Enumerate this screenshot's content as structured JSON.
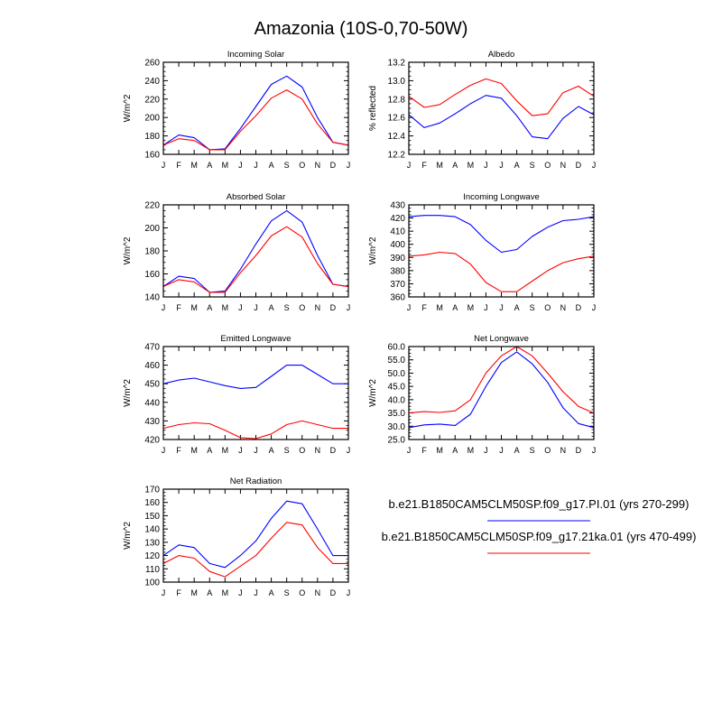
{
  "title": "Amazonia (10S-0,70-50W)",
  "months": [
    "J",
    "F",
    "M",
    "A",
    "M",
    "J",
    "J",
    "A",
    "S",
    "O",
    "N",
    "D",
    "J"
  ],
  "legend": [
    {
      "label": "b.e21.B1850CAM5CLM50SP.f09_g17.PI.01 (yrs 270-299)",
      "color": "#0000ff"
    },
    {
      "label": "b.e21.B1850CAM5CLM50SP.f09_g17.21ka.01 (yrs 470-499)",
      "color": "#ff0000"
    }
  ],
  "chart_data": [
    {
      "type": "line",
      "title": "Incoming Solar",
      "ylabel": "W/m^2",
      "ylim": [
        160,
        260
      ],
      "yticks": [
        160,
        180,
        200,
        220,
        240,
        260
      ],
      "ytick_labels": [
        "160",
        "180",
        "200",
        "220",
        "240",
        "260"
      ],
      "series": [
        {
          "name": "PI",
          "color": "#0000ff",
          "values": [
            170,
            181,
            178,
            165,
            166,
            188,
            212,
            236,
            245,
            233,
            200,
            173,
            170
          ]
        },
        {
          "name": "21ka",
          "color": "#ff0000",
          "values": [
            170,
            177,
            175,
            165,
            165,
            185,
            202,
            221,
            230,
            220,
            193,
            173,
            170
          ]
        }
      ]
    },
    {
      "type": "line",
      "title": "Albedo",
      "ylabel": "% reflected",
      "ylim": [
        12.2,
        13.2
      ],
      "yticks": [
        12.2,
        12.4,
        12.6,
        12.8,
        13.0,
        13.2
      ],
      "ytick_labels": [
        "12.2",
        "12.4",
        "12.6",
        "12.8",
        "13.0",
        "13.2"
      ],
      "series": [
        {
          "name": "PI",
          "color": "#0000ff",
          "values": [
            12.63,
            12.49,
            12.54,
            12.64,
            12.75,
            12.84,
            12.81,
            12.62,
            12.39,
            12.37,
            12.59,
            12.72,
            12.63
          ]
        },
        {
          "name": "21ka",
          "color": "#ff0000",
          "values": [
            12.83,
            12.71,
            12.74,
            12.85,
            12.95,
            13.02,
            12.97,
            12.78,
            12.62,
            12.64,
            12.87,
            12.94,
            12.83
          ]
        }
      ]
    },
    {
      "type": "line",
      "title": "Absorbed Solar",
      "ylabel": "W/m^2",
      "ylim": [
        140,
        220
      ],
      "yticks": [
        140,
        160,
        180,
        200,
        220
      ],
      "ytick_labels": [
        "140",
        "160",
        "180",
        "200",
        "220"
      ],
      "series": [
        {
          "name": "PI",
          "color": "#0000ff",
          "values": [
            149,
            158,
            156,
            144,
            145,
            164,
            186,
            206,
            215,
            205,
            176,
            151,
            149
          ]
        },
        {
          "name": "21ka",
          "color": "#ff0000",
          "values": [
            149,
            155,
            153,
            144,
            144,
            161,
            176,
            193,
            201,
            192,
            169,
            151,
            149
          ]
        }
      ]
    },
    {
      "type": "line",
      "title": "Incoming Longwave",
      "ylabel": "W/m^2",
      "ylim": [
        360,
        430
      ],
      "yticks": [
        360,
        370,
        380,
        390,
        400,
        410,
        420,
        430
      ],
      "ytick_labels": [
        "360",
        "370",
        "380",
        "390",
        "400",
        "410",
        "420",
        "430"
      ],
      "series": [
        {
          "name": "PI",
          "color": "#0000ff",
          "values": [
            421,
            422,
            422,
            421,
            415,
            403,
            394,
            396,
            406,
            413,
            418,
            419,
            421
          ]
        },
        {
          "name": "21ka",
          "color": "#ff0000",
          "values": [
            391,
            392,
            394,
            393,
            385,
            371,
            364,
            364,
            372,
            380,
            386,
            389,
            391
          ]
        }
      ]
    },
    {
      "type": "line",
      "title": "Emitted Longwave",
      "ylabel": "W/m^2",
      "ylim": [
        420,
        470
      ],
      "yticks": [
        420,
        430,
        440,
        450,
        460,
        470
      ],
      "ytick_labels": [
        "420",
        "430",
        "440",
        "450",
        "460",
        "470"
      ],
      "series": [
        {
          "name": "PI",
          "color": "#0000ff",
          "values": [
            450,
            452,
            453,
            451,
            449,
            447.5,
            448,
            454,
            460,
            460,
            455,
            450,
            450
          ]
        },
        {
          "name": "21ka",
          "color": "#ff0000",
          "values": [
            426,
            428,
            429,
            428.5,
            425,
            421,
            420.5,
            423,
            428,
            430,
            428,
            426,
            426
          ]
        }
      ]
    },
    {
      "type": "line",
      "title": "Net Longwave",
      "ylabel": "W/m^2",
      "ylim": [
        25,
        60
      ],
      "yticks": [
        25,
        30,
        35,
        40,
        45,
        50,
        55,
        60
      ],
      "ytick_labels": [
        "25.0",
        "30.0",
        "35.0",
        "40.0",
        "45.0",
        "50.0",
        "55.0",
        "60.0"
      ],
      "series": [
        {
          "name": "PI",
          "color": "#0000ff",
          "values": [
            29.5,
            30.5,
            30.8,
            30.3,
            34.5,
            45,
            54,
            58,
            53.5,
            46.5,
            37,
            31,
            29.5
          ]
        },
        {
          "name": "21ka",
          "color": "#ff0000",
          "values": [
            35,
            35.5,
            35.2,
            35.8,
            40,
            50,
            56.5,
            60,
            56.5,
            50,
            43,
            37.5,
            35
          ]
        }
      ]
    },
    {
      "type": "line",
      "title": "Net Radiation",
      "ylabel": "W/m^2",
      "ylim": [
        100,
        170
      ],
      "yticks": [
        100,
        110,
        120,
        130,
        140,
        150,
        160,
        170
      ],
      "ytick_labels": [
        "100",
        "110",
        "120",
        "130",
        "140",
        "150",
        "160",
        "170"
      ],
      "series": [
        {
          "name": "PI",
          "color": "#0000ff",
          "values": [
            120,
            128,
            126,
            114,
            111,
            120,
            131,
            148,
            161,
            159,
            140,
            120,
            120
          ]
        },
        {
          "name": "21ka",
          "color": "#ff0000",
          "values": [
            114,
            120,
            118,
            108,
            104,
            112,
            120,
            133,
            145,
            143,
            126,
            114,
            114
          ]
        }
      ]
    }
  ]
}
